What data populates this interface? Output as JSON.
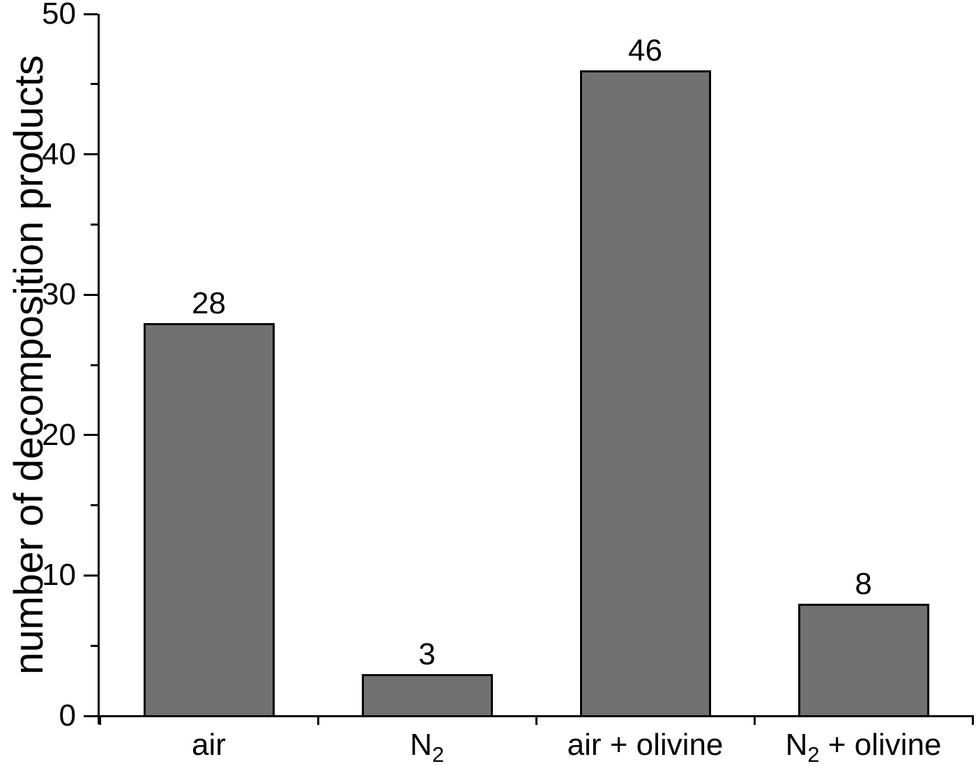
{
  "chart_data": {
    "type": "bar",
    "title": "",
    "xlabel": "",
    "ylabel": "number of decomposition products",
    "categories": [
      "air",
      "N₂",
      "air + olivine",
      "N₂ + olivine"
    ],
    "category_segments": [
      [
        {
          "text": "air"
        }
      ],
      [
        {
          "text": "N"
        },
        {
          "text": "2",
          "subscript": true
        }
      ],
      [
        {
          "text": "air + olivine"
        }
      ],
      [
        {
          "text": "N"
        },
        {
          "text": "2",
          "subscript": true
        },
        {
          "text": " + olivine"
        }
      ]
    ],
    "values": [
      28,
      3,
      46,
      8
    ],
    "value_labels": [
      "28",
      "3",
      "46",
      "8"
    ],
    "ylim": [
      0,
      50
    ],
    "y_major_ticks": [
      0,
      10,
      20,
      30,
      40,
      50
    ],
    "y_minor_ticks": [
      5,
      15,
      25,
      35,
      45
    ],
    "grid": "off",
    "legend": "none",
    "colors": {
      "bar_fill": "#717171",
      "bar_border": "#000000",
      "axis": "#000000",
      "text": "#000000",
      "background": "#ffffff"
    }
  }
}
